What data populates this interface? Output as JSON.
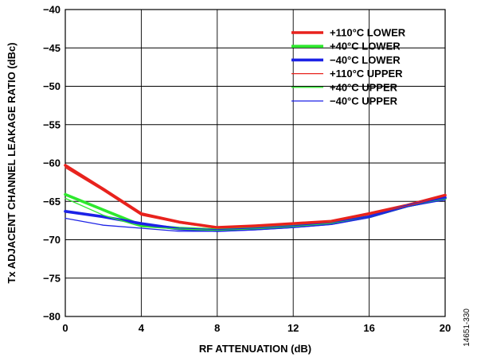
{
  "chart_data": {
    "type": "line",
    "xlabel": "RF ATTENUATION (dB)",
    "ylabel": "Tx ADJACENT CHANNEL LEAKAGE RATIO (dBc)",
    "xlim": [
      0,
      20
    ],
    "ylim": [
      -80,
      -40
    ],
    "x_ticks": [
      "0",
      "4",
      "8",
      "12",
      "16",
      "20"
    ],
    "y_ticks": [
      "−40",
      "−45",
      "−50",
      "−55",
      "−60",
      "−65",
      "−70",
      "−75",
      "−80"
    ],
    "grid": true,
    "legend_position": "top-right",
    "figure_id": "14651-330",
    "x": [
      0,
      2,
      4,
      6,
      8,
      10,
      12,
      14,
      16,
      18,
      20
    ],
    "series": [
      {
        "name": "+110°C LOWER",
        "color": "#e8221d",
        "weight": "thick",
        "values": [
          -60.3,
          -63.4,
          -66.6,
          -67.7,
          -68.4,
          -68.2,
          -67.9,
          -67.6,
          -66.6,
          -65.5,
          -64.2
        ]
      },
      {
        "name": "+40°C LOWER",
        "color": "#2ee82e",
        "weight": "thick",
        "values": [
          -64.1,
          -66.1,
          -68.1,
          -68.5,
          -68.7,
          -68.5,
          -68.2,
          -67.8,
          -67.0,
          -65.6,
          -64.6
        ]
      },
      {
        "name": "−40°C LOWER",
        "color": "#1c22e6",
        "weight": "thick",
        "values": [
          -66.3,
          -67.0,
          -67.9,
          -68.6,
          -68.8,
          -68.6,
          -68.3,
          -67.9,
          -67.0,
          -65.6,
          -64.5
        ]
      },
      {
        "name": "+110°C UPPER",
        "color": "#e8221d",
        "weight": "thin",
        "values": [
          -60.6,
          -63.6,
          -66.8,
          -67.8,
          -68.5,
          -68.3,
          -68.0,
          -67.7,
          -66.7,
          -65.6,
          -64.3
        ]
      },
      {
        "name": "+40°C UPPER",
        "color": "#2ee82e",
        "weight": "thin",
        "values": [
          -64.6,
          -66.8,
          -68.3,
          -68.6,
          -68.8,
          -68.6,
          -68.3,
          -67.9,
          -67.1,
          -65.7,
          -64.7
        ]
      },
      {
        "name": "−40°C UPPER",
        "color": "#1c22e6",
        "weight": "thin",
        "values": [
          -67.2,
          -68.1,
          -68.5,
          -68.9,
          -68.9,
          -68.7,
          -68.4,
          -68.0,
          -67.1,
          -65.7,
          -64.8
        ]
      }
    ]
  }
}
